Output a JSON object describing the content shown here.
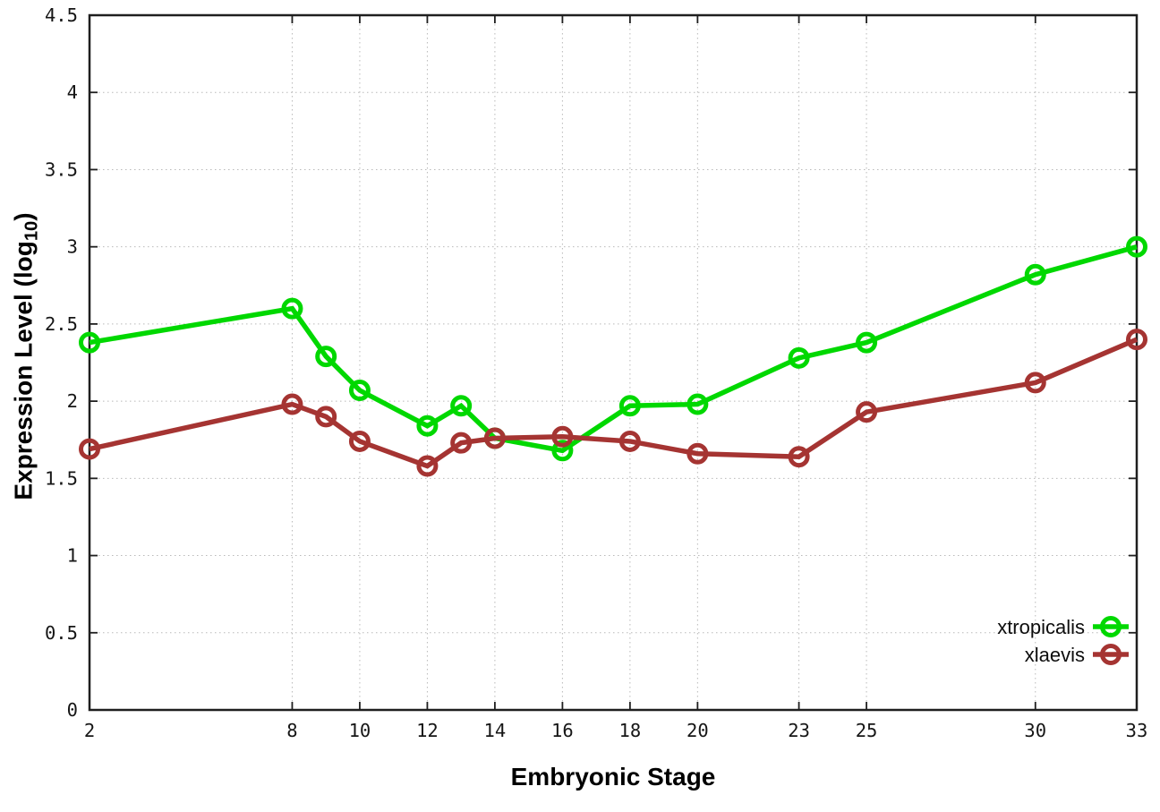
{
  "chart_data": {
    "type": "line",
    "xlabel": "Embryonic Stage",
    "ylabel": {
      "prefix": "Expression Level (log",
      "subscript": "10",
      "suffix": ")"
    },
    "xlim": [
      2,
      33
    ],
    "ylim": [
      0,
      4.5
    ],
    "grid": true,
    "legend_position": "inside-bottom-right",
    "xticks": {
      "values": [
        2,
        8,
        10,
        12,
        14,
        16,
        18,
        20,
        23,
        25,
        30,
        33
      ],
      "labels": [
        "2",
        "8",
        "10",
        "12",
        "14",
        "16",
        "18",
        "20",
        "23",
        "25",
        "30",
        "33"
      ]
    },
    "yticks": {
      "values": [
        0,
        0.5,
        1,
        1.5,
        2,
        2.5,
        3,
        3.5,
        4,
        4.5
      ],
      "labels": [
        "0",
        "0.5",
        "1",
        "1.5",
        "2",
        "2.5",
        "3",
        "3.5",
        "4",
        "4.5"
      ]
    },
    "series": [
      {
        "name": "xtropicalis",
        "label": "xtropicalis",
        "color": "#00d800",
        "marker": "open-circle",
        "x": [
          2,
          8,
          9,
          10,
          12,
          13,
          14,
          16,
          18,
          20,
          23,
          25,
          30,
          33
        ],
        "y": [
          2.38,
          2.6,
          2.29,
          2.07,
          1.84,
          1.97,
          1.76,
          1.68,
          1.97,
          1.98,
          2.28,
          2.38,
          2.82,
          3.0
        ]
      },
      {
        "name": "xlaevis",
        "label": "xlaevis",
        "color": "#a53432",
        "marker": "open-circle",
        "x": [
          2,
          8,
          9,
          10,
          12,
          13,
          14,
          16,
          18,
          20,
          23,
          25,
          30,
          33
        ],
        "y": [
          1.69,
          1.98,
          1.9,
          1.74,
          1.58,
          1.73,
          1.76,
          1.77,
          1.74,
          1.66,
          1.64,
          1.93,
          2.12,
          2.4
        ]
      }
    ],
    "colors": {
      "background": "#ffffff",
      "border": "#1f1f1f",
      "gridline": "#b9b9b9",
      "tick_label": "#161616"
    }
  }
}
